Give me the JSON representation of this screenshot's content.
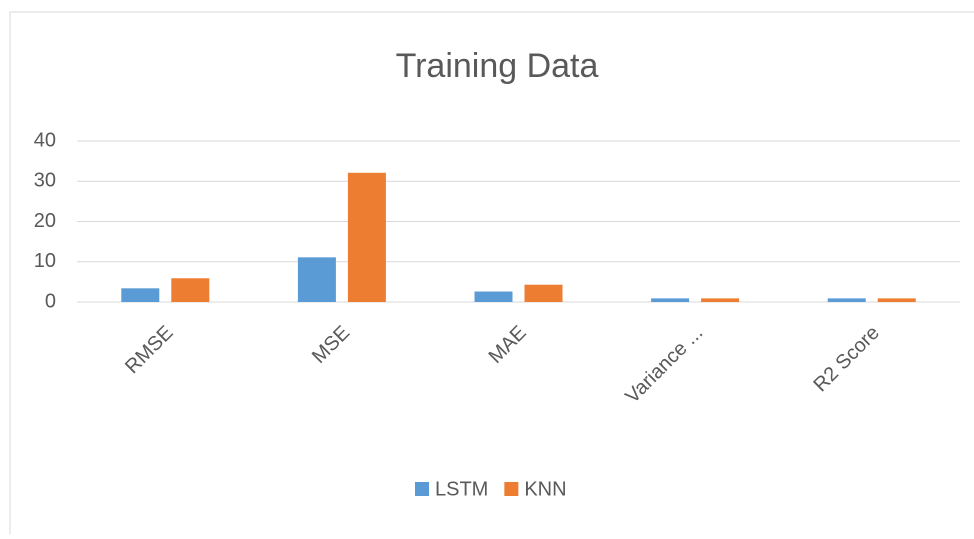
{
  "chart_data": {
    "type": "bar",
    "title": "Training Data",
    "categories": [
      "RMSE",
      "MSE",
      "MAE",
      "Variance ...",
      "R2 Score"
    ],
    "series": [
      {
        "name": "LSTM",
        "color": "#5b9bd5",
        "values": [
          3.4,
          11.1,
          2.6,
          0.9,
          0.9
        ]
      },
      {
        "name": "KNN",
        "color": "#ed7d31",
        "values": [
          5.9,
          32.1,
          4.3,
          0.9,
          0.9
        ]
      }
    ],
    "ylim": [
      0,
      40
    ],
    "yticks": [
      0,
      10,
      20,
      30,
      40
    ],
    "grid": true,
    "legend": "bottom"
  }
}
